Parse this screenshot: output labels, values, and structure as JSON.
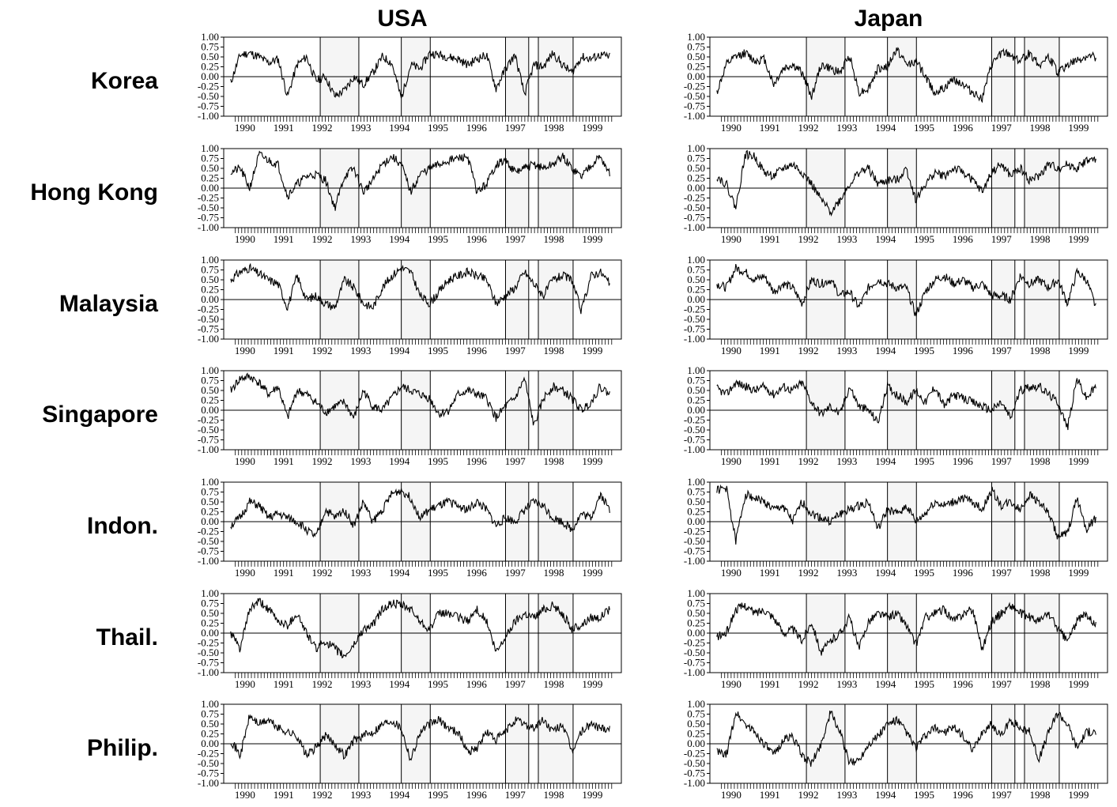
{
  "columns": [
    {
      "title": "USA"
    },
    {
      "title": "Japan"
    }
  ],
  "rows": [
    {
      "label": "Korea"
    },
    {
      "label": "Hong Kong"
    },
    {
      "label": "Malaysia"
    },
    {
      "label": "Singapore"
    },
    {
      "label": "Indon."
    },
    {
      "label": "Thail."
    },
    {
      "label": "Philip."
    }
  ],
  "chart_data": {
    "type": "line",
    "layout": "grid 7 rows x 2 columns",
    "ylim": [
      -1.0,
      1.0
    ],
    "yticks": [
      "1.00",
      "0.75",
      "0.50",
      "0.25",
      "0.00",
      "-0.25",
      "-0.50",
      "-0.75",
      "-1.00"
    ],
    "xlim": [
      1989.7,
      2000.0
    ],
    "xticks": [
      "1990",
      "1991",
      "1992",
      "1993",
      "1994",
      "1995",
      "1996",
      "1997",
      "1998",
      "1999"
    ],
    "zero_line": true,
    "shaded_periods": [
      [
        1992.2,
        1993.2
      ],
      [
        1994.3,
        1995.05
      ],
      [
        1997.0,
        1997.6
      ],
      [
        1997.85,
        1998.75
      ]
    ],
    "series": [
      {
        "row": "Korea",
        "col": "USA",
        "keys": [
          -0.15,
          0.55,
          0.6,
          0.5,
          0.35,
          0.45,
          -0.5,
          0.3,
          0.5,
          -0.1,
          0.0,
          -0.5,
          -0.35,
          0.0,
          -0.2,
          0.1,
          0.5,
          0.35,
          -0.55,
          0.3,
          0.2,
          0.6,
          0.55,
          0.5,
          0.45,
          0.3,
          0.45,
          0.55,
          -0.3,
          0.2,
          0.55,
          -0.45,
          0.3,
          0.25,
          0.6,
          0.3,
          0.1,
          0.5,
          0.45,
          0.55,
          0.5
        ],
        "seed": 11
      },
      {
        "row": "Korea",
        "col": "Japan",
        "keys": [
          -0.4,
          0.3,
          0.5,
          0.6,
          0.4,
          0.45,
          -0.2,
          0.2,
          0.3,
          0.1,
          -0.5,
          0.3,
          0.2,
          0.1,
          0.55,
          -0.4,
          -0.3,
          0.2,
          0.25,
          0.7,
          0.3,
          0.4,
          0.0,
          -0.4,
          -0.3,
          -0.05,
          -0.2,
          -0.4,
          -0.55,
          0.3,
          0.6,
          0.55,
          0.4,
          0.6,
          0.3,
          0.5,
          0.1,
          0.3,
          0.4,
          0.5,
          0.5
        ],
        "seed": 12
      },
      {
        "row": "Hong Kong",
        "col": "USA",
        "keys": [
          0.4,
          0.5,
          0.0,
          0.85,
          0.7,
          0.6,
          -0.2,
          0.1,
          0.3,
          0.35,
          0.2,
          -0.5,
          0.3,
          0.5,
          -0.1,
          0.2,
          0.6,
          0.8,
          0.6,
          -0.1,
          0.35,
          0.5,
          0.6,
          0.7,
          0.75,
          0.8,
          -0.1,
          0.1,
          0.6,
          0.7,
          0.4,
          0.5,
          0.6,
          0.5,
          0.6,
          0.8,
          0.5,
          0.3,
          0.6,
          0.8,
          0.35
        ],
        "seed": 21
      },
      {
        "row": "Hong Kong",
        "col": "Japan",
        "keys": [
          0.3,
          0.1,
          -0.5,
          0.85,
          0.8,
          0.4,
          0.3,
          0.5,
          0.6,
          0.4,
          0.1,
          -0.3,
          -0.6,
          -0.3,
          0.1,
          0.4,
          0.5,
          0.1,
          0.2,
          0.2,
          0.5,
          -0.3,
          0.1,
          0.4,
          0.3,
          0.5,
          0.4,
          0.2,
          -0.1,
          0.4,
          0.6,
          0.3,
          0.5,
          0.2,
          0.3,
          0.6,
          0.5,
          0.6,
          0.5,
          0.7,
          0.7
        ],
        "seed": 22
      },
      {
        "row": "Malaysia",
        "col": "USA",
        "keys": [
          0.5,
          0.7,
          0.8,
          0.65,
          0.5,
          0.4,
          -0.2,
          0.6,
          0.0,
          0.1,
          -0.1,
          -0.2,
          0.5,
          0.3,
          -0.1,
          -0.2,
          0.3,
          0.6,
          0.8,
          0.7,
          0.1,
          -0.1,
          0.2,
          0.5,
          0.6,
          0.7,
          0.6,
          0.5,
          -0.1,
          0.1,
          0.3,
          0.7,
          0.4,
          0.1,
          0.5,
          0.6,
          0.5,
          -0.3,
          0.6,
          0.7,
          0.4
        ],
        "seed": 31
      },
      {
        "row": "Malaysia",
        "col": "Japan",
        "keys": [
          0.4,
          0.3,
          0.8,
          0.7,
          0.5,
          0.6,
          0.2,
          0.4,
          0.3,
          -0.1,
          0.5,
          0.4,
          0.5,
          0.1,
          0.2,
          -0.2,
          0.3,
          0.5,
          0.4,
          0.3,
          0.3,
          -0.4,
          0.2,
          0.5,
          0.6,
          0.4,
          0.5,
          0.3,
          0.4,
          0.1,
          0.1,
          0.0,
          0.6,
          0.4,
          0.5,
          0.3,
          0.5,
          -0.1,
          0.7,
          0.5,
          -0.2
        ],
        "seed": 32
      },
      {
        "row": "Singapore",
        "col": "USA",
        "keys": [
          0.5,
          0.8,
          0.85,
          0.7,
          0.4,
          0.6,
          -0.2,
          0.5,
          0.4,
          0.2,
          -0.05,
          0.1,
          0.2,
          -0.2,
          0.5,
          0.1,
          0.0,
          0.3,
          0.6,
          0.5,
          0.4,
          0.3,
          -0.1,
          0.0,
          0.4,
          0.5,
          0.4,
          0.3,
          -0.2,
          0.1,
          0.3,
          0.8,
          -0.4,
          0.3,
          0.6,
          0.5,
          0.3,
          0.0,
          0.2,
          0.6,
          0.4
        ],
        "seed": 41
      },
      {
        "row": "Singapore",
        "col": "Japan",
        "keys": [
          0.55,
          0.4,
          0.7,
          0.6,
          0.5,
          0.6,
          0.4,
          0.6,
          0.5,
          0.7,
          0.2,
          -0.1,
          0.1,
          -0.1,
          0.6,
          0.1,
          0.0,
          -0.3,
          0.6,
          0.4,
          0.2,
          0.5,
          0.2,
          0.6,
          0.1,
          0.4,
          0.3,
          0.2,
          0.1,
          0.0,
          0.2,
          -0.2,
          0.5,
          0.6,
          0.6,
          0.4,
          0.2,
          -0.45,
          0.8,
          0.3,
          0.6
        ],
        "seed": 42
      },
      {
        "row": "Indon.",
        "col": "USA",
        "keys": [
          -0.1,
          0.1,
          0.5,
          0.4,
          0.1,
          0.2,
          0.1,
          0.0,
          -0.2,
          -0.4,
          0.3,
          0.1,
          0.3,
          -0.1,
          0.5,
          0.0,
          0.3,
          0.7,
          0.8,
          0.6,
          0.1,
          0.3,
          0.4,
          0.5,
          0.4,
          0.3,
          0.5,
          0.3,
          -0.1,
          0.1,
          0.0,
          0.3,
          0.5,
          0.4,
          0.1,
          0.0,
          -0.2,
          0.2,
          0.1,
          0.7,
          0.3
        ],
        "seed": 51
      },
      {
        "row": "Indon.",
        "col": "Japan",
        "keys": [
          0.8,
          0.85,
          -0.5,
          0.7,
          0.6,
          0.5,
          0.3,
          0.4,
          0.0,
          0.5,
          0.2,
          0.1,
          0.0,
          0.2,
          0.3,
          0.4,
          0.5,
          -0.2,
          0.3,
          0.2,
          0.4,
          0.0,
          0.2,
          0.5,
          0.4,
          0.5,
          0.6,
          0.5,
          0.3,
          0.8,
          0.4,
          0.5,
          0.3,
          0.7,
          0.5,
          0.2,
          -0.4,
          -0.3,
          0.6,
          -0.2,
          0.1
        ],
        "seed": 52
      },
      {
        "row": "Thail.",
        "col": "USA",
        "keys": [
          0.0,
          -0.4,
          0.6,
          0.8,
          0.6,
          0.3,
          0.2,
          0.5,
          0.0,
          -0.4,
          -0.2,
          -0.4,
          -0.6,
          -0.3,
          0.1,
          0.2,
          0.6,
          0.75,
          0.7,
          0.6,
          0.3,
          0.1,
          0.5,
          0.5,
          0.4,
          0.3,
          0.6,
          0.3,
          -0.5,
          -0.1,
          0.3,
          0.5,
          0.4,
          0.6,
          0.7,
          0.5,
          0.1,
          0.2,
          0.4,
          0.4,
          0.6
        ],
        "seed": 61
      },
      {
        "row": "Thail.",
        "col": "Japan",
        "keys": [
          -0.1,
          0.0,
          0.6,
          0.7,
          0.5,
          0.6,
          0.4,
          0.0,
          0.1,
          -0.2,
          0.3,
          -0.5,
          -0.2,
          0.0,
          0.4,
          -0.4,
          0.3,
          0.5,
          0.4,
          0.5,
          0.2,
          -0.3,
          0.4,
          0.5,
          0.6,
          0.3,
          0.5,
          0.6,
          -0.4,
          0.3,
          0.5,
          0.7,
          0.5,
          0.4,
          0.3,
          0.5,
          0.1,
          -0.2,
          0.3,
          0.5,
          0.2
        ],
        "seed": 62
      },
      {
        "row": "Philip.",
        "col": "USA",
        "keys": [
          0.1,
          -0.3,
          0.7,
          0.5,
          0.6,
          0.4,
          0.3,
          0.2,
          -0.3,
          -0.1,
          0.2,
          0.0,
          -0.3,
          0.1,
          0.2,
          0.3,
          0.5,
          0.6,
          0.4,
          -0.4,
          0.3,
          0.5,
          0.6,
          0.4,
          0.3,
          -0.2,
          -0.1,
          0.3,
          0.1,
          0.3,
          0.6,
          0.5,
          0.4,
          0.6,
          0.3,
          0.5,
          -0.2,
          0.3,
          0.5,
          0.4,
          0.4
        ],
        "seed": 71
      },
      {
        "row": "Philip.",
        "col": "Japan",
        "keys": [
          -0.2,
          -0.3,
          0.8,
          0.5,
          0.3,
          0.0,
          -0.3,
          0.1,
          0.2,
          -0.3,
          -0.5,
          0.0,
          0.8,
          0.3,
          -0.5,
          -0.4,
          0.0,
          0.2,
          0.5,
          0.6,
          0.3,
          -0.1,
          0.2,
          0.4,
          0.3,
          0.4,
          0.2,
          -0.2,
          0.3,
          0.5,
          0.2,
          0.6,
          0.4,
          0.3,
          -0.4,
          0.3,
          0.8,
          0.5,
          -0.1,
          0.3,
          0.3
        ],
        "seed": 72
      }
    ]
  }
}
